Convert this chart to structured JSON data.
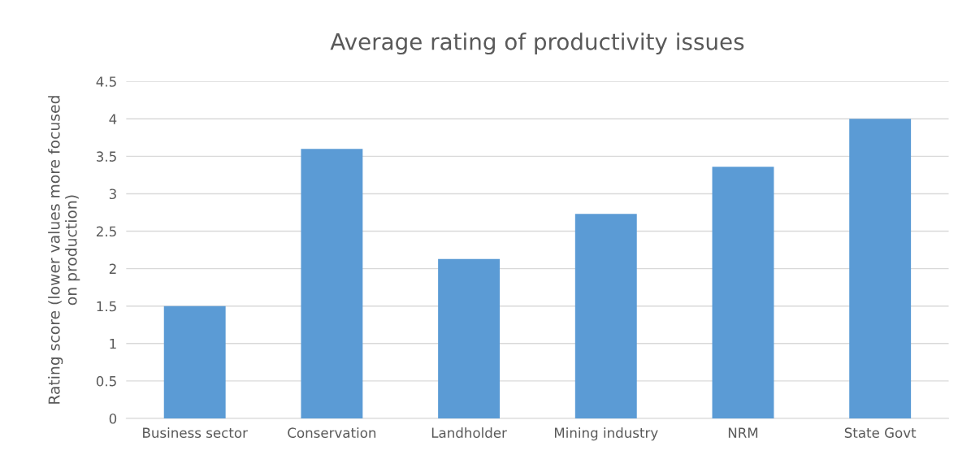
{
  "chart_data": {
    "type": "bar",
    "title": "Average rating of productivity issues",
    "ylabel": "Rating score (lower values more focused\non production)",
    "categories": [
      "Business sector",
      "Conservation",
      "Landholder",
      "Mining industry",
      "NRM",
      "State Govt"
    ],
    "values": [
      1.5,
      3.6,
      2.13,
      2.73,
      3.36,
      4.0
    ],
    "color": "#5b9bd5",
    "ylim": [
      0,
      4.5
    ],
    "yticks": [
      0,
      0.5,
      1,
      1.5,
      2,
      2.5,
      3,
      3.5,
      4,
      4.5
    ],
    "grid": "y"
  }
}
